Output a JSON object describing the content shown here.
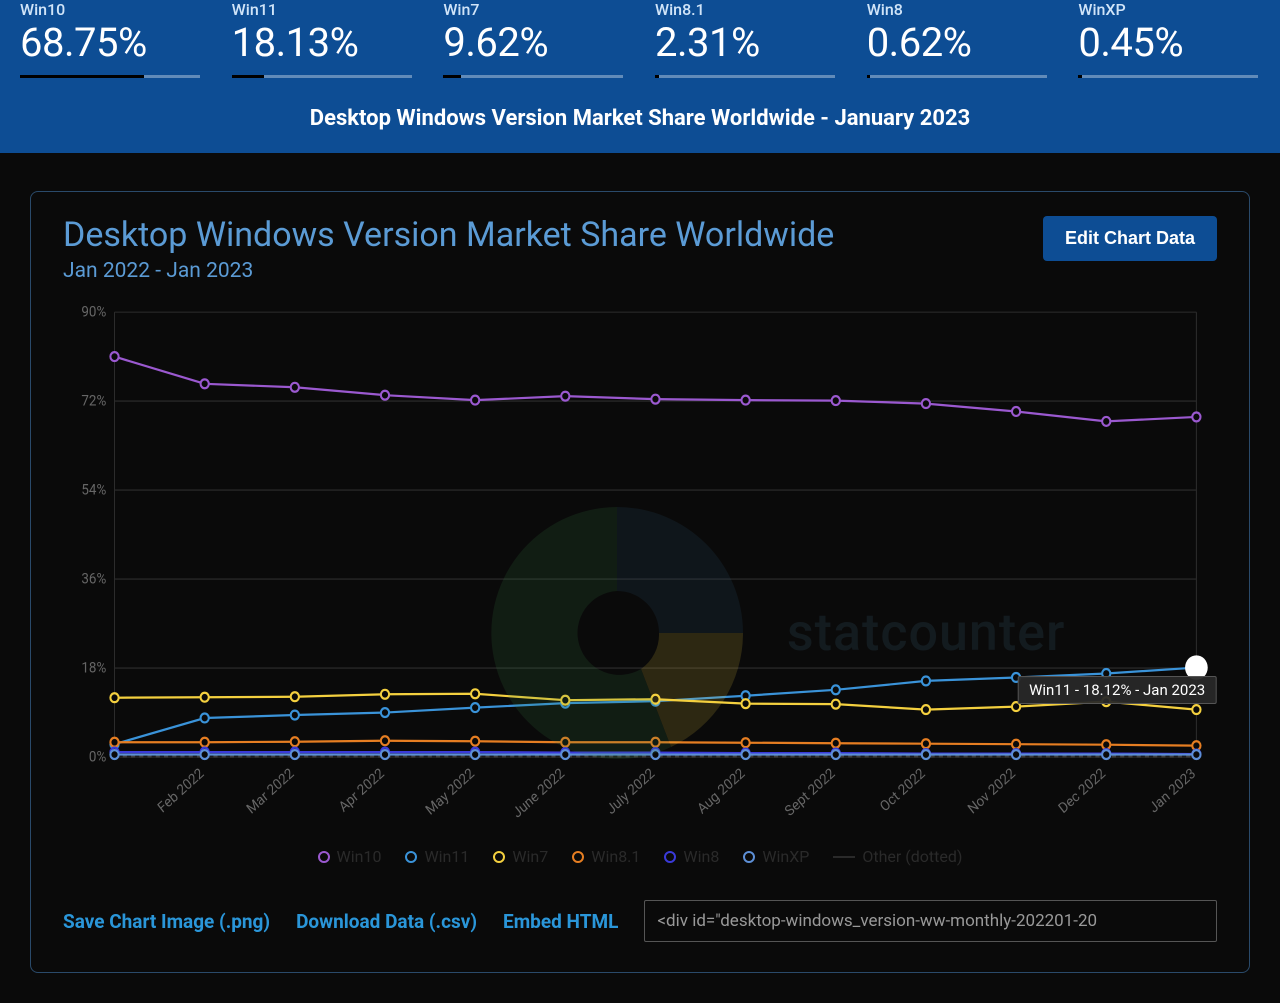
{
  "header": {
    "title": "Desktop Windows Version Market Share Worldwide - January 2023",
    "background": "#0d4d94",
    "title_color": "#ffffff",
    "label_color": "#d0e4f8",
    "value_color": "#ffffff",
    "title_fontsize": 22,
    "value_fontsize": 40,
    "stats": [
      {
        "label": "Win10",
        "value": "68.75%",
        "frac": 0.6875
      },
      {
        "label": "Win11",
        "value": "18.13%",
        "frac": 0.1813
      },
      {
        "label": "Win7",
        "value": "9.62%",
        "frac": 0.0962
      },
      {
        "label": "Win8.1",
        "value": "2.31%",
        "frac": 0.0231
      },
      {
        "label": "Win8",
        "value": "0.62%",
        "frac": 0.0062
      },
      {
        "label": "WinXP",
        "value": "0.45%",
        "frac": 0.0045
      }
    ]
  },
  "chart": {
    "type": "line",
    "title": "Desktop Windows Version Market Share Worldwide",
    "subtitle": "Jan 2022 - Jan 2023",
    "title_color": "#5b9bd5",
    "title_fontsize": 34,
    "subtitle_fontsize": 21,
    "edit_button_label": "Edit Chart Data",
    "edit_button_bg": "#0d4d94",
    "panel_border": "#2a4a6a",
    "background_color": "#0a0a0a",
    "grid_color": "#2d2d2d",
    "axis_label_color": "#666666",
    "tick_label_color": "#666666",
    "axis_fontsize": 13,
    "ylim": [
      0,
      90
    ],
    "ytick_step": 18,
    "ytick_format": "%",
    "yticks": [
      "0%",
      "18%",
      "36%",
      "54%",
      "72%",
      "90%"
    ],
    "marker_radius": 4,
    "line_width": 2,
    "x_categories": [
      "Jan 2022",
      "Feb 2022",
      "Mar 2022",
      "Apr 2022",
      "May 2022",
      "June 2022",
      "July 2022",
      "Aug 2022",
      "Sept 2022",
      "Oct 2022",
      "Nov 2022",
      "Dec 2022",
      "Jan 2023"
    ],
    "x_labels_shown": [
      "Feb 2022",
      "Mar 2022",
      "Apr 2022",
      "May 2022",
      "June 2022",
      "July 2022",
      "Aug 2022",
      "Sept 2022",
      "Oct 2022",
      "Nov 2022",
      "Dec 2022",
      "Jan 2023"
    ],
    "series": [
      {
        "name": "Win10",
        "color": "#9b59d0",
        "values": [
          81.0,
          75.5,
          74.8,
          73.2,
          72.2,
          73.0,
          72.4,
          72.2,
          72.1,
          71.5,
          69.9,
          67.9,
          68.8
        ]
      },
      {
        "name": "Win11",
        "color": "#3a93d9",
        "values": [
          2.6,
          7.9,
          8.5,
          9.0,
          10.0,
          10.9,
          11.3,
          12.4,
          13.6,
          15.4,
          16.1,
          16.9,
          18.1
        ]
      },
      {
        "name": "Win7",
        "color": "#f4d03f",
        "values": [
          12.0,
          12.1,
          12.2,
          12.7,
          12.8,
          11.5,
          11.7,
          10.8,
          10.7,
          9.6,
          10.2,
          11.2,
          9.6
        ]
      },
      {
        "name": "Win8.1",
        "color": "#e67e22",
        "values": [
          3.0,
          3.0,
          3.1,
          3.3,
          3.2,
          3.0,
          3.0,
          2.9,
          2.8,
          2.7,
          2.6,
          2.5,
          2.3
        ]
      },
      {
        "name": "Win8",
        "color": "#3a3ad9",
        "values": [
          1.0,
          1.0,
          1.0,
          1.0,
          1.0,
          0.9,
          0.9,
          0.8,
          0.8,
          0.7,
          0.7,
          0.7,
          0.6
        ]
      },
      {
        "name": "WinXP",
        "color": "#5d8fd6",
        "values": [
          0.5,
          0.5,
          0.5,
          0.5,
          0.5,
          0.5,
          0.5,
          0.5,
          0.5,
          0.5,
          0.5,
          0.5,
          0.5
        ]
      }
    ],
    "other_series": {
      "name": "Other (dotted)",
      "style": "dashed",
      "color": "#404040",
      "values": [
        0.1,
        0.1,
        0.1,
        0.1,
        0.1,
        0.1,
        0.1,
        0.1,
        0.1,
        0.1,
        0.1,
        0.1,
        0.1
      ]
    },
    "highlight_point": {
      "series": "Win11",
      "index": 12,
      "radius": 11,
      "color": "#ffffff"
    },
    "tooltip": {
      "text": "Win11 - 18.12% - Jan 2023",
      "bg": "rgba(40,40,40,0.95)",
      "border": "#555",
      "text_color": "#ffffff",
      "fontsize": 15
    },
    "watermark": {
      "text": "statcounter",
      "text_color": "#4a7a9a",
      "logo_colors": [
        "#2d5a7a",
        "#f4d03f",
        "#3a8a4a"
      ]
    }
  },
  "actions": {
    "save_png": "Save Chart Image (.png)",
    "download_csv": "Download Data (.csv)",
    "embed_html": "Embed HTML",
    "link_color": "#2a96d9",
    "embed_value": "<div id=\"desktop-windows_version-ww-monthly-202201-20"
  }
}
